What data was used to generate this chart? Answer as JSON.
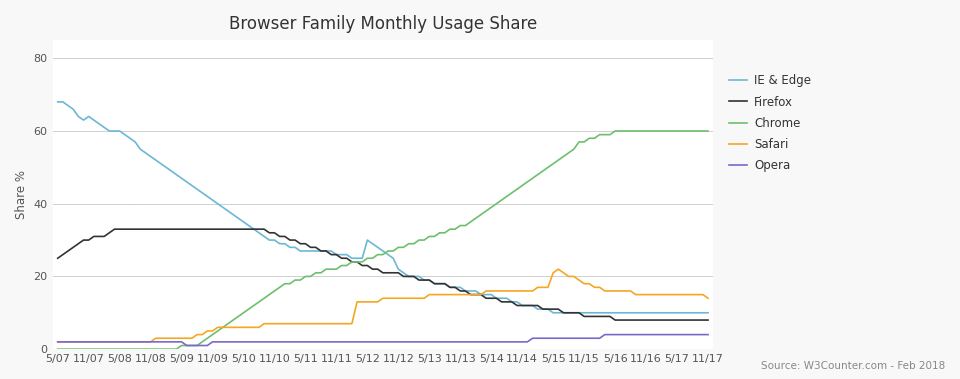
{
  "title": "Browser Family Monthly Usage Share",
  "ylabel": "Share %",
  "source_text": "Source: W3Counter.com - Feb 2018",
  "x_labels": [
    "5/07",
    "11/07",
    "5/08",
    "11/08",
    "5/09",
    "11/09",
    "5/10",
    "11/10",
    "5/11",
    "11/11",
    "5/12",
    "11/12",
    "5/13",
    "11/13",
    "5/14",
    "11/14",
    "5/15",
    "11/15",
    "5/16",
    "11/16",
    "5/17",
    "11/17"
  ],
  "x_tick_positions": [
    0,
    6,
    12,
    18,
    24,
    30,
    36,
    42,
    48,
    54,
    60,
    66,
    72,
    78,
    84,
    90,
    96,
    102,
    108,
    114,
    120,
    126
  ],
  "ylim": [
    0,
    85
  ],
  "yticks": [
    0,
    20,
    40,
    60,
    80
  ],
  "series": {
    "IE & Edge": {
      "color": "#6BB8D4",
      "linewidth": 1.2,
      "values": [
        68,
        68,
        67,
        66,
        64,
        63,
        64,
        63,
        62,
        61,
        60,
        60,
        60,
        59,
        58,
        57,
        55,
        54,
        53,
        52,
        51,
        50,
        49,
        48,
        47,
        46,
        45,
        44,
        43,
        42,
        41,
        40,
        39,
        38,
        37,
        36,
        35,
        34,
        33,
        32,
        31,
        30,
        30,
        29,
        29,
        28,
        28,
        27,
        27,
        27,
        27,
        27,
        27,
        27,
        26,
        26,
        26,
        25,
        25,
        25,
        30,
        29,
        28,
        27,
        26,
        25,
        22,
        21,
        20,
        20,
        20,
        19,
        19,
        18,
        18,
        18,
        17,
        17,
        17,
        16,
        16,
        16,
        15,
        15,
        15,
        14,
        14,
        14,
        13,
        13,
        12,
        12,
        12,
        11,
        11,
        11,
        10,
        10,
        10,
        10,
        10,
        10,
        10,
        10,
        10,
        10,
        10,
        10,
        10,
        10,
        10,
        10,
        10,
        10,
        10,
        10,
        10,
        10,
        10,
        10,
        10,
        10,
        10,
        10,
        10,
        10,
        10
      ]
    },
    "Firefox": {
      "color": "#333333",
      "linewidth": 1.2,
      "values": [
        25,
        26,
        27,
        28,
        29,
        30,
        30,
        31,
        31,
        31,
        32,
        33,
        33,
        33,
        33,
        33,
        33,
        33,
        33,
        33,
        33,
        33,
        33,
        33,
        33,
        33,
        33,
        33,
        33,
        33,
        33,
        33,
        33,
        33,
        33,
        33,
        33,
        33,
        33,
        33,
        33,
        32,
        32,
        31,
        31,
        30,
        30,
        29,
        29,
        28,
        28,
        27,
        27,
        26,
        26,
        25,
        25,
        24,
        24,
        23,
        23,
        22,
        22,
        21,
        21,
        21,
        21,
        20,
        20,
        20,
        19,
        19,
        19,
        18,
        18,
        18,
        17,
        17,
        16,
        16,
        15,
        15,
        15,
        14,
        14,
        14,
        13,
        13,
        13,
        12,
        12,
        12,
        12,
        12,
        11,
        11,
        11,
        11,
        10,
        10,
        10,
        10,
        9,
        9,
        9,
        9,
        9,
        9,
        8,
        8,
        8,
        8,
        8,
        8,
        8,
        8,
        8,
        8,
        8,
        8,
        8,
        8,
        8,
        8,
        8,
        8,
        8
      ]
    },
    "Chrome": {
      "color": "#6DBF6D",
      "linewidth": 1.2,
      "values": [
        0,
        0,
        0,
        0,
        0,
        0,
        0,
        0,
        0,
        0,
        0,
        0,
        0,
        0,
        0,
        0,
        0,
        0,
        0,
        0,
        0,
        0,
        0,
        0,
        1,
        1,
        1,
        1,
        2,
        3,
        4,
        5,
        6,
        7,
        8,
        9,
        10,
        11,
        12,
        13,
        14,
        15,
        16,
        17,
        18,
        18,
        19,
        19,
        20,
        20,
        21,
        21,
        22,
        22,
        22,
        23,
        23,
        24,
        24,
        24,
        25,
        25,
        26,
        26,
        27,
        27,
        28,
        28,
        29,
        29,
        30,
        30,
        31,
        31,
        32,
        32,
        33,
        33,
        34,
        34,
        35,
        36,
        37,
        38,
        39,
        40,
        41,
        42,
        43,
        44,
        45,
        46,
        47,
        48,
        49,
        50,
        51,
        52,
        53,
        54,
        55,
        57,
        57,
        58,
        58,
        59,
        59,
        59,
        60,
        60,
        60,
        60,
        60,
        60,
        60,
        60,
        60,
        60,
        60,
        60,
        60,
        60,
        60,
        60,
        60,
        60,
        60
      ]
    },
    "Safari": {
      "color": "#F5A623",
      "linewidth": 1.2,
      "values": [
        2,
        2,
        2,
        2,
        2,
        2,
        2,
        2,
        2,
        2,
        2,
        2,
        2,
        2,
        2,
        2,
        2,
        2,
        2,
        3,
        3,
        3,
        3,
        3,
        3,
        3,
        3,
        4,
        4,
        5,
        5,
        6,
        6,
        6,
        6,
        6,
        6,
        6,
        6,
        6,
        7,
        7,
        7,
        7,
        7,
        7,
        7,
        7,
        7,
        7,
        7,
        7,
        7,
        7,
        7,
        7,
        7,
        7,
        13,
        13,
        13,
        13,
        13,
        14,
        14,
        14,
        14,
        14,
        14,
        14,
        14,
        14,
        15,
        15,
        15,
        15,
        15,
        15,
        15,
        15,
        15,
        15,
        15,
        16,
        16,
        16,
        16,
        16,
        16,
        16,
        16,
        16,
        16,
        17,
        17,
        17,
        21,
        22,
        21,
        20,
        20,
        19,
        18,
        18,
        17,
        17,
        16,
        16,
        16,
        16,
        16,
        16,
        15,
        15,
        15,
        15,
        15,
        15,
        15,
        15,
        15,
        15,
        15,
        15,
        15,
        15,
        14
      ]
    },
    "Opera": {
      "color": "#7B68C8",
      "linewidth": 1.2,
      "values": [
        2,
        2,
        2,
        2,
        2,
        2,
        2,
        2,
        2,
        2,
        2,
        2,
        2,
        2,
        2,
        2,
        2,
        2,
        2,
        2,
        2,
        2,
        2,
        2,
        2,
        1,
        1,
        1,
        1,
        1,
        2,
        2,
        2,
        2,
        2,
        2,
        2,
        2,
        2,
        2,
        2,
        2,
        2,
        2,
        2,
        2,
        2,
        2,
        2,
        2,
        2,
        2,
        2,
        2,
        2,
        2,
        2,
        2,
        2,
        2,
        2,
        2,
        2,
        2,
        2,
        2,
        2,
        2,
        2,
        2,
        2,
        2,
        2,
        2,
        2,
        2,
        2,
        2,
        2,
        2,
        2,
        2,
        2,
        2,
        2,
        2,
        2,
        2,
        2,
        2,
        2,
        2,
        3,
        3,
        3,
        3,
        3,
        3,
        3,
        3,
        3,
        3,
        3,
        3,
        3,
        3,
        4,
        4,
        4,
        4,
        4,
        4,
        4,
        4,
        4,
        4,
        4,
        4,
        4,
        4,
        4,
        4,
        4,
        4,
        4,
        4,
        4
      ]
    }
  },
  "legend_order": [
    "IE & Edge",
    "Firefox",
    "Chrome",
    "Safari",
    "Opera"
  ],
  "background_color": "#f8f8f8",
  "plot_background": "#ffffff",
  "grid_color": "#d0d0d0",
  "title_fontsize": 12,
  "label_fontsize": 8.5,
  "tick_fontsize": 8,
  "source_fontsize": 7.5
}
